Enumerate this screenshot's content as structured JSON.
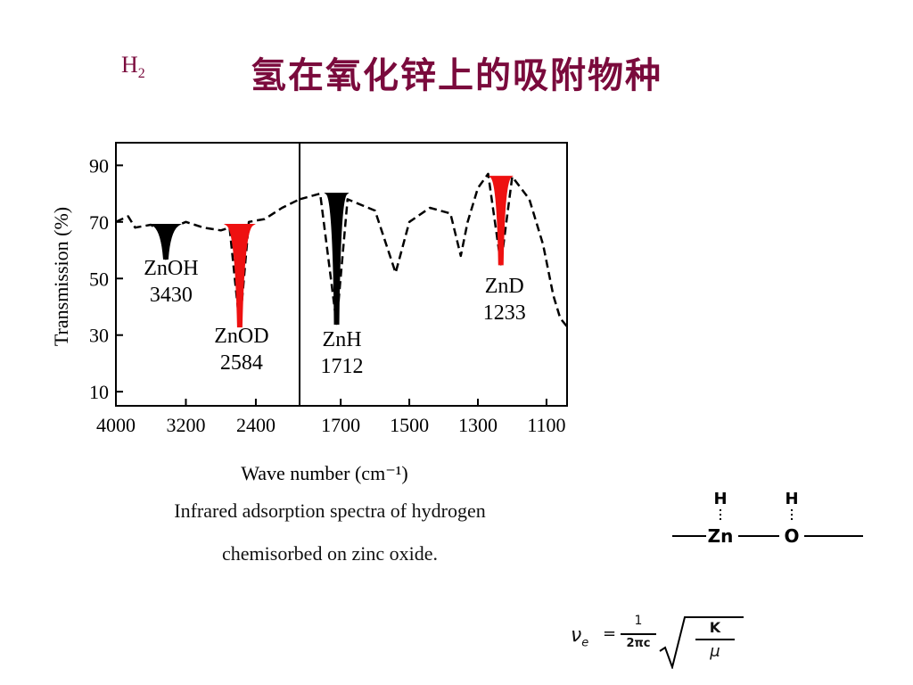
{
  "slide": {
    "label": "H",
    "label_sub": "2",
    "title": "氢在氧化锌上的吸附物种"
  },
  "chart_data": {
    "type": "line",
    "ylabel": "Transmission (%)",
    "xlabel": "Wave number (cm⁻¹)",
    "y_ticks": [
      "90",
      "70",
      "50",
      "30",
      "10"
    ],
    "ylim": [
      5,
      98
    ],
    "panels": [
      {
        "name": "left",
        "xlim": [
          4000,
          1900
        ],
        "x_ticks": [
          "4000",
          "3200",
          "2400"
        ]
      },
      {
        "name": "right",
        "xlim": [
          1820,
          1040
        ],
        "x_ticks": [
          "1700",
          "1500",
          "1300",
          "1100"
        ]
      }
    ],
    "series": [
      {
        "panel": "left",
        "color": "#000000",
        "style": "dashed",
        "x": [
          4000,
          3860,
          3780,
          3600,
          3500,
          3430,
          3360,
          3200,
          3000,
          2800,
          2700,
          2584,
          2480,
          2300,
          2100,
          1900
        ],
        "y": [
          70,
          72,
          68,
          69,
          67,
          57,
          68,
          70,
          68,
          67,
          68,
          33,
          70,
          71,
          75,
          78
        ]
      },
      {
        "panel": "right",
        "color": "#000000",
        "style": "dashed",
        "x": [
          1820,
          1760,
          1712,
          1680,
          1600,
          1540,
          1500,
          1440,
          1380,
          1350,
          1330,
          1300,
          1270,
          1233,
          1200,
          1150,
          1110,
          1080,
          1060,
          1040
        ],
        "y": [
          78,
          80,
          34,
          78,
          74,
          52,
          70,
          75,
          73,
          58,
          70,
          82,
          87,
          55,
          86,
          78,
          62,
          44,
          36,
          33
        ]
      }
    ],
    "peaks": [
      {
        "panel": "left",
        "x": 3430,
        "y": 57,
        "label": "ZnOH",
        "value": "3430",
        "color": "#000000"
      },
      {
        "panel": "left",
        "x": 2584,
        "y": 33,
        "label": "ZnOD",
        "value": "2584",
        "color": "#ee1111"
      },
      {
        "panel": "right",
        "x": 1712,
        "y": 34,
        "label": "ZnH",
        "value": "1712",
        "color": "#000000"
      },
      {
        "panel": "right",
        "x": 1233,
        "y": 55,
        "label": "ZnD",
        "value": "1233",
        "color": "#ee1111"
      }
    ],
    "caption": [
      "Infrared adsorption spectra of hydrogen",
      "chemisorbed on zinc oxide."
    ]
  },
  "structure": {
    "atoms": [
      "H",
      "H",
      "Zn",
      "O"
    ]
  },
  "formula": {
    "lhs": "ν",
    "lhs_sub": "e",
    "equals": "=",
    "numerator": "1",
    "denominator": "2πc",
    "root_numerator": "K",
    "root_denominator": "μ"
  }
}
